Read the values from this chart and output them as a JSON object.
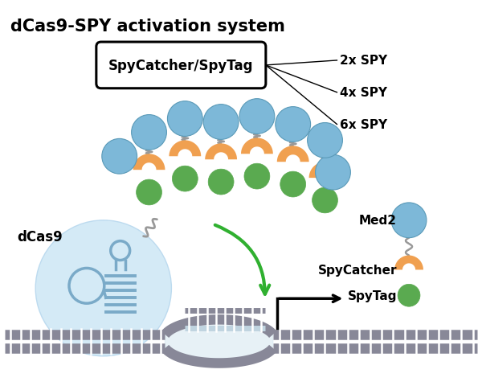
{
  "title": "dCas9-SPY activation system",
  "title_fontsize": 15,
  "title_fontweight": "bold",
  "background_color": "#ffffff",
  "box_label": "SpyCatcher/SpyTag",
  "spy_labels": [
    "2x SPY",
    "4x SPY",
    "6x SPY"
  ],
  "blue_ball_color": "#7db8d8",
  "orange_color": "#f0a050",
  "green_color": "#5aaa50",
  "gray_color": "#999999",
  "light_blue_big": "#d0e8f5",
  "dna_color": "#888898",
  "dna_tick_color": "#aaaaaa",
  "arrow_green": "#30b030",
  "dcas9_label": "dCas9",
  "med2_label": "Med2",
  "spycatcher_label": "SpyCatcher",
  "spytag_label": "SpyTag"
}
